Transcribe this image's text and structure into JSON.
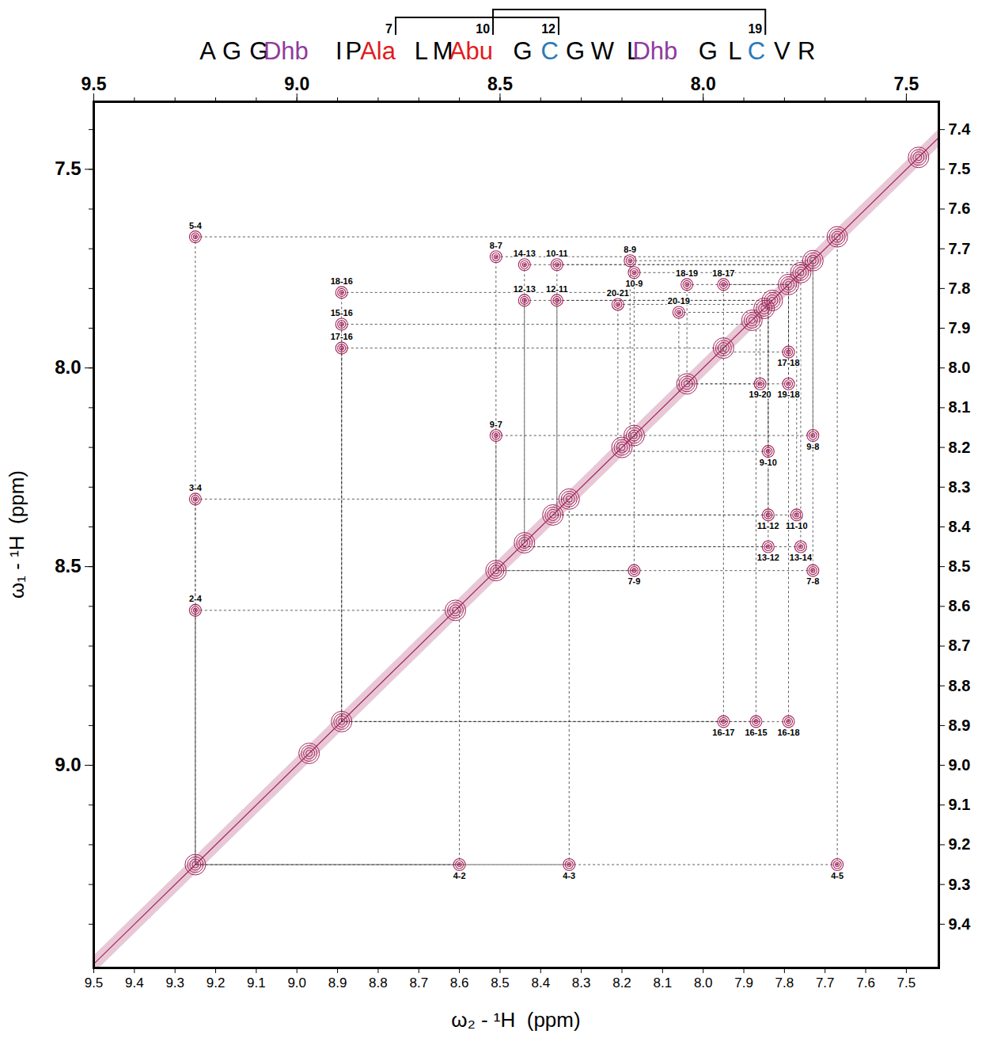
{
  "chart_data": {
    "type": "scatter",
    "color": "#a3235a",
    "grid": false,
    "sequence": [
      {
        "text": "A",
        "color": "#000000"
      },
      {
        "text": "G",
        "color": "#000000"
      },
      {
        "text": "G",
        "color": "#000000"
      },
      {
        "text": "Dhb",
        "color": "#8e3a9d"
      },
      {
        "text": "I",
        "color": "#000000"
      },
      {
        "text": "P",
        "color": "#000000"
      },
      {
        "text": "Ala",
        "color": "#e31a1c"
      },
      {
        "text": "L",
        "color": "#000000"
      },
      {
        "text": "M",
        "color": "#000000"
      },
      {
        "text": "Abu",
        "color": "#e31a1c"
      },
      {
        "text": "G",
        "color": "#000000"
      },
      {
        "text": "C",
        "color": "#2a7ab8"
      },
      {
        "text": "G",
        "color": "#000000"
      },
      {
        "text": "W",
        "color": "#000000"
      },
      {
        "text": "L",
        "color": "#000000"
      },
      {
        "text": "Dhb",
        "color": "#8e3a9d"
      },
      {
        "text": "G",
        "color": "#000000"
      },
      {
        "text": "L",
        "color": "#000000"
      },
      {
        "text": "C",
        "color": "#2a7ab8"
      },
      {
        "text": "V",
        "color": "#000000"
      },
      {
        "text": "R",
        "color": "#000000"
      }
    ],
    "bridges": [
      [
        7,
        12
      ],
      [
        10,
        19
      ]
    ],
    "x_label": "ω₂ - ¹H  (ppm)",
    "y_label": "ω₁ - ¹H  (ppm)",
    "xlim": [
      9.5,
      7.42
    ],
    "ylim": [
      9.51,
      7.33
    ],
    "xticks": [
      9.5,
      9.4,
      9.3,
      9.2,
      9.1,
      {
        "value": 9,
        "label": "9.0"
      },
      8.9,
      8.8,
      8.7,
      8.6,
      8.5,
      8.4,
      8.3,
      8.2,
      8.1,
      {
        "value": 8,
        "label": "8.0"
      },
      7.9,
      7.8,
      7.7,
      7.6,
      7.5
    ],
    "x_top_ticks": [
      9.5,
      {
        "value": 9,
        "label": "9.0"
      },
      8.5,
      {
        "value": 8,
        "label": "8.0"
      },
      7.5
    ],
    "yticks": [
      7.5,
      {
        "value": 8,
        "label": "8.0"
      },
      8.5,
      {
        "value": 9,
        "label": "9.0"
      }
    ],
    "y_right_ticks": [
      7.4,
      7.5,
      7.6,
      7.7,
      7.8,
      7.9,
      {
        "value": 8,
        "label": "8.0"
      },
      8.1,
      8.2,
      8.3,
      8.4,
      8.5,
      8.6,
      8.7,
      8.8,
      8.9,
      {
        "value": 9,
        "label": "9.0"
      },
      9.1,
      9.2,
      9.3,
      9.4
    ],
    "peaks": [
      {
        "label": "5-4",
        "x": 9.25,
        "y": 7.67
      },
      {
        "label": "3-4",
        "x": 9.25,
        "y": 8.33
      },
      {
        "label": "2-4",
        "x": 9.25,
        "y": 8.61
      },
      {
        "label": "4-2",
        "x": 8.6,
        "y": 9.25
      },
      {
        "label": "4-3",
        "x": 8.33,
        "y": 9.25
      },
      {
        "label": "4-5",
        "x": 7.67,
        "y": 9.25
      },
      {
        "label": "18-16",
        "x": 8.89,
        "y": 7.81
      },
      {
        "label": "15-16",
        "x": 8.89,
        "y": 7.89
      },
      {
        "label": "17-16",
        "x": 8.89,
        "y": 7.95
      },
      {
        "label": "16-17",
        "x": 7.95,
        "y": 8.89
      },
      {
        "label": "16-15",
        "x": 7.87,
        "y": 8.89
      },
      {
        "label": "16-18",
        "x": 7.79,
        "y": 8.89
      },
      {
        "label": "8-7",
        "x": 8.51,
        "y": 7.72
      },
      {
        "label": "14-13",
        "x": 8.44,
        "y": 7.74
      },
      {
        "label": "10-11",
        "x": 8.36,
        "y": 7.74
      },
      {
        "label": "8-9",
        "x": 8.18,
        "y": 7.73
      },
      {
        "label": "10-9",
        "x": 8.17,
        "y": 7.76
      },
      {
        "label": "12-13",
        "x": 8.44,
        "y": 7.83
      },
      {
        "label": "12-11",
        "x": 8.36,
        "y": 7.83
      },
      {
        "label": "20-21",
        "x": 8.21,
        "y": 7.84
      },
      {
        "label": "18-19",
        "x": 8.04,
        "y": 7.79
      },
      {
        "label": "18-17",
        "x": 7.95,
        "y": 7.79
      },
      {
        "label": "20-19",
        "x": 8.06,
        "y": 7.86
      },
      {
        "label": "17-18",
        "x": 7.79,
        "y": 7.96
      },
      {
        "label": "19-18",
        "x": 7.79,
        "y": 8.04
      },
      {
        "label": "19-20",
        "x": 7.86,
        "y": 8.04
      },
      {
        "label": "9-8",
        "x": 7.73,
        "y": 8.17
      },
      {
        "label": "9-7",
        "x": 8.51,
        "y": 8.17
      },
      {
        "label": "9-10",
        "x": 7.84,
        "y": 8.21
      },
      {
        "label": "11-12",
        "x": 7.84,
        "y": 8.37
      },
      {
        "label": "11-10",
        "x": 7.77,
        "y": 8.37
      },
      {
        "label": "13-12",
        "x": 7.84,
        "y": 8.45
      },
      {
        "label": "13-14",
        "x": 7.76,
        "y": 8.45
      },
      {
        "label": "7-9",
        "x": 8.17,
        "y": 8.51
      },
      {
        "label": "7-8",
        "x": 7.73,
        "y": 8.51
      }
    ],
    "diagonal_peaks": [
      7.47,
      7.67,
      7.73,
      7.76,
      7.79,
      7.83,
      7.85,
      7.88,
      7.95,
      8.04,
      8.17,
      8.2,
      8.33,
      8.37,
      8.44,
      8.51,
      8.61,
      8.89,
      8.97,
      9.25
    ]
  }
}
